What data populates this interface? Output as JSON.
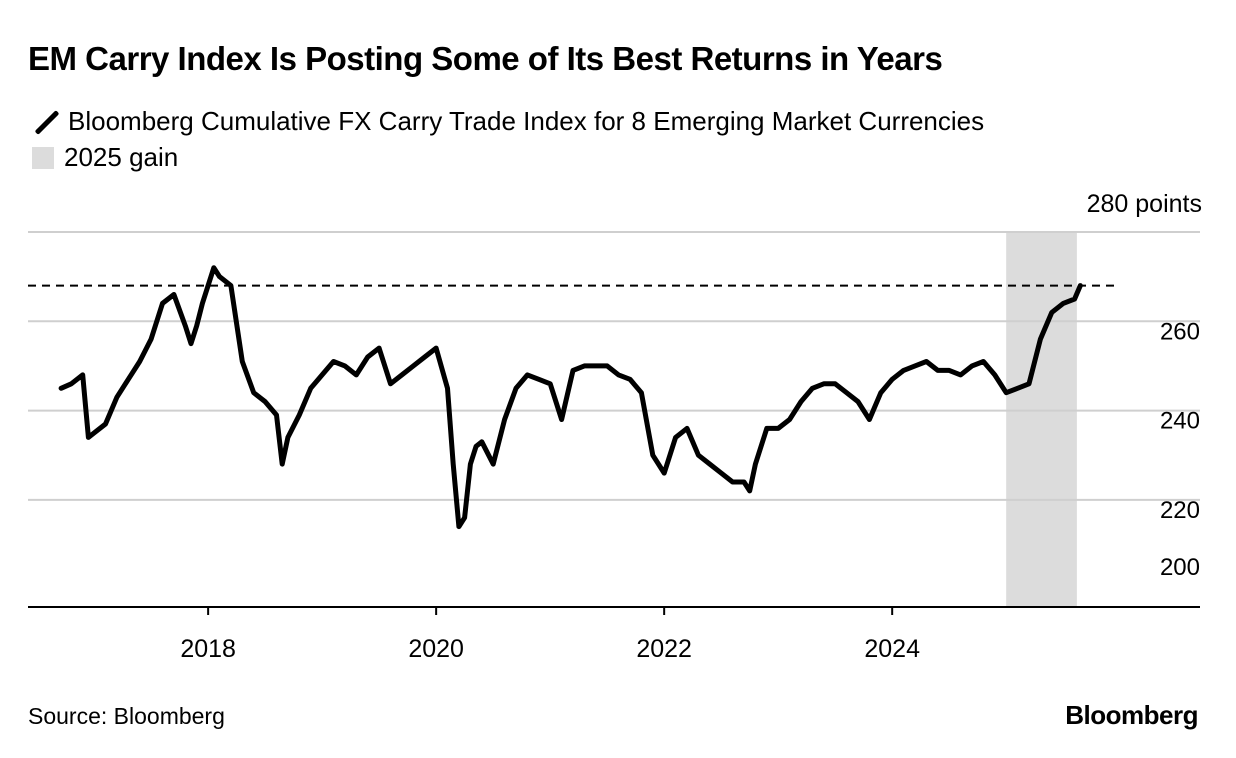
{
  "chart_data": {
    "type": "line",
    "title": "EM Carry Index Is Posting Some of Its Best Returns in Years",
    "series": [
      {
        "name": "Bloomberg Cumulative FX Carry Trade Index for 8 Emerging Market Currencies",
        "color": "#000000",
        "x": [
          2016.71,
          2016.8,
          2016.9,
          2016.95,
          2017.0,
          2017.1,
          2017.2,
          2017.3,
          2017.4,
          2017.5,
          2017.6,
          2017.7,
          2017.8,
          2017.85,
          2017.9,
          2017.95,
          2018.05,
          2018.1,
          2018.2,
          2018.3,
          2018.4,
          2018.5,
          2018.6,
          2018.65,
          2018.7,
          2018.8,
          2018.9,
          2019.0,
          2019.1,
          2019.2,
          2019.3,
          2019.4,
          2019.5,
          2019.6,
          2019.7,
          2019.8,
          2019.9,
          2020.0,
          2020.1,
          2020.15,
          2020.2,
          2020.25,
          2020.3,
          2020.35,
          2020.4,
          2020.5,
          2020.6,
          2020.7,
          2020.8,
          2020.9,
          2021.0,
          2021.1,
          2021.2,
          2021.3,
          2021.4,
          2021.5,
          2021.6,
          2021.7,
          2021.8,
          2021.9,
          2022.0,
          2022.1,
          2022.2,
          2022.3,
          2022.4,
          2022.5,
          2022.6,
          2022.7,
          2022.75,
          2022.8,
          2022.9,
          2023.0,
          2023.1,
          2023.2,
          2023.3,
          2023.4,
          2023.5,
          2023.6,
          2023.7,
          2023.8,
          2023.9,
          2024.0,
          2024.1,
          2024.2,
          2024.3,
          2024.4,
          2024.5,
          2024.6,
          2024.7,
          2024.8,
          2024.9,
          2025.0,
          2025.1,
          2025.2,
          2025.3,
          2025.4,
          2025.5,
          2025.6,
          2025.65
        ],
        "y": [
          245,
          246,
          248,
          234,
          235,
          237,
          243,
          247,
          251,
          256,
          264,
          266,
          259,
          255,
          259,
          264,
          272,
          270,
          268,
          251,
          244,
          242,
          239,
          228,
          234,
          239,
          245,
          248,
          251,
          250,
          248,
          252,
          254,
          246,
          248,
          250,
          252,
          254,
          245,
          228,
          214,
          216,
          228,
          232,
          233,
          228,
          238,
          245,
          248,
          247,
          246,
          238,
          249,
          250,
          250,
          250,
          248,
          247,
          244,
          230,
          226,
          234,
          236,
          230,
          228,
          226,
          224,
          224,
          222,
          228,
          236,
          236,
          238,
          242,
          245,
          246,
          246,
          244,
          242,
          238,
          244,
          247,
          249,
          250,
          251,
          249,
          249,
          248,
          250,
          251,
          248,
          244,
          245,
          246,
          256,
          262,
          264,
          265,
          268
        ]
      }
    ],
    "reference_lines": [
      {
        "y": 268,
        "style": "dashed"
      }
    ],
    "shaded_regions": [
      {
        "label": "2025 gain",
        "x_start": 2025.0,
        "x_end": 2025.62,
        "color": "#dcdcdc"
      }
    ],
    "xticks": [
      2018,
      2020,
      2022,
      2024
    ],
    "xtick_labels": [
      "2018",
      "2020",
      "2022",
      "2024"
    ],
    "yticks": [
      200,
      220,
      240,
      260,
      280
    ],
    "ytick_labels": [
      "200",
      "220",
      "240",
      "260"
    ],
    "y_unit_label": "280 points",
    "xlim": [
      2016.42,
      2026.7
    ],
    "ylim": [
      196,
      280
    ],
    "grid": "horizontal",
    "legend_position": "top-left"
  },
  "legend": {
    "line_label": "Bloomberg Cumulative FX Carry Trade Index for 8 Emerging Market Currencies",
    "shade_label": "2025 gain"
  },
  "footer": {
    "source": "Source: Bloomberg",
    "brand": "Bloomberg"
  }
}
